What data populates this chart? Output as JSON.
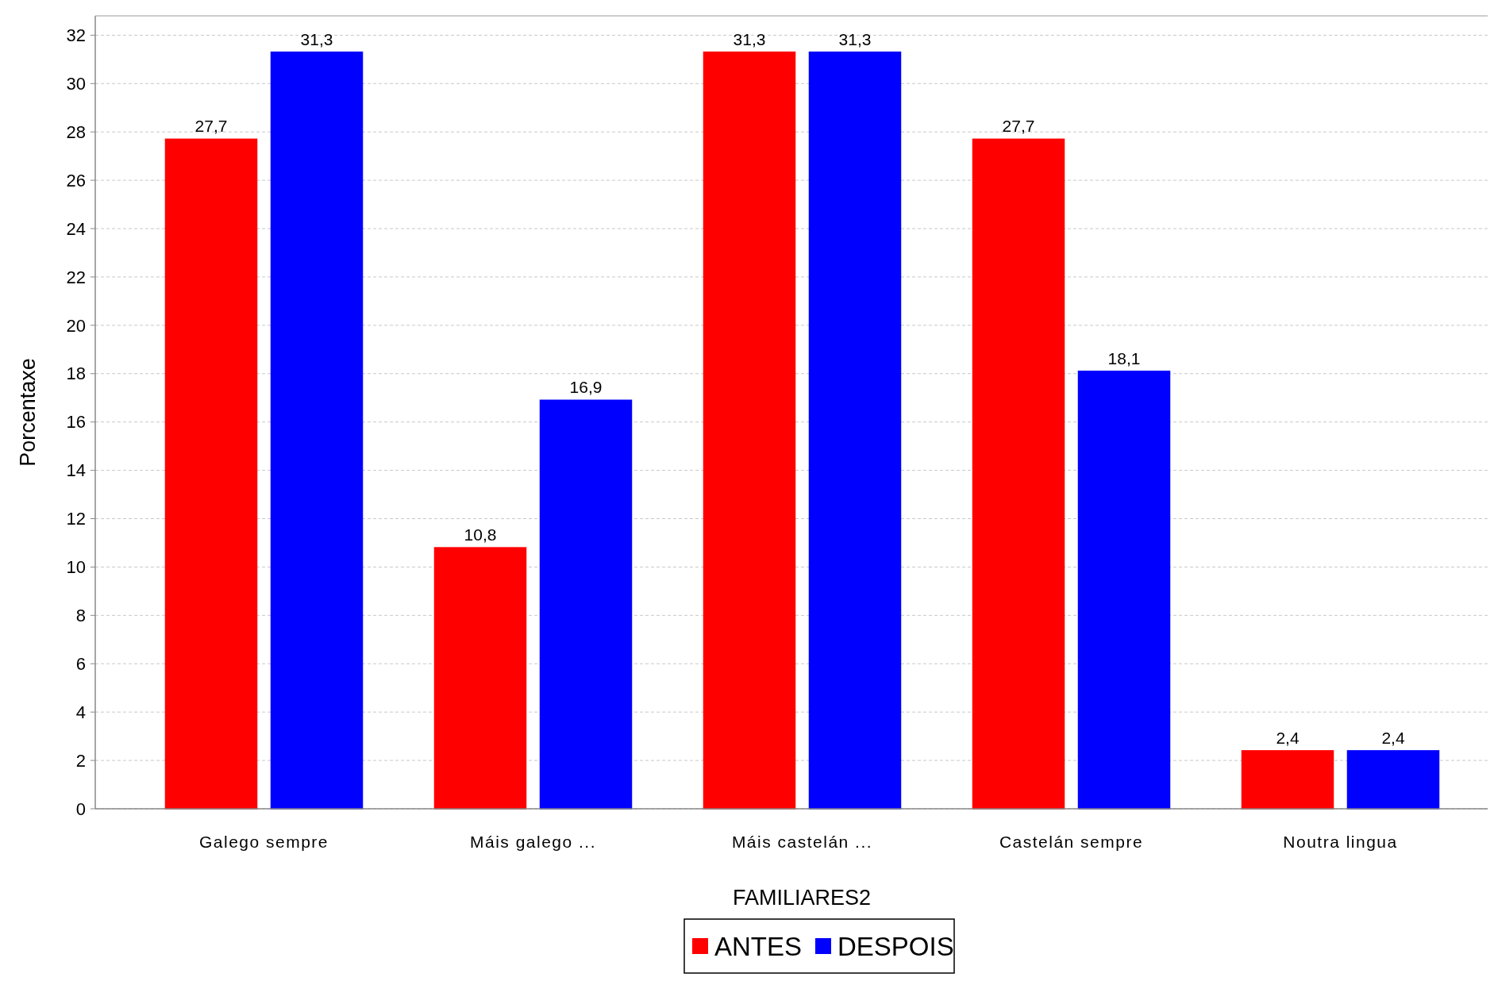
{
  "chart_data": {
    "type": "bar",
    "xlabel": "FAMILIARES2",
    "ylabel": "Porcentaxe",
    "categories": [
      "Galego sempre",
      "Máis galego ...",
      "Máis castelán ...",
      "Castelán sempre",
      "Noutra lingua"
    ],
    "series": [
      {
        "name": "ANTES",
        "color": "#ff0000",
        "values": [
          27.7,
          10.8,
          31.3,
          27.7,
          2.4
        ]
      },
      {
        "name": "DESPOIS",
        "color": "#0000ff",
        "values": [
          31.3,
          16.9,
          31.3,
          18.1,
          2.4
        ]
      }
    ],
    "value_labels": [
      [
        "27,7",
        "10,8",
        "31,3",
        "27,7",
        "2,4"
      ],
      [
        "31,3",
        "16,9",
        "31,3",
        "18,1",
        "2,4"
      ]
    ],
    "ylim": [
      0,
      32.8
    ],
    "yticks": [
      0,
      2,
      4,
      6,
      8,
      10,
      12,
      14,
      16,
      18,
      20,
      22,
      24,
      26,
      28,
      30,
      32
    ],
    "grid": "y",
    "legend": "bottom"
  }
}
